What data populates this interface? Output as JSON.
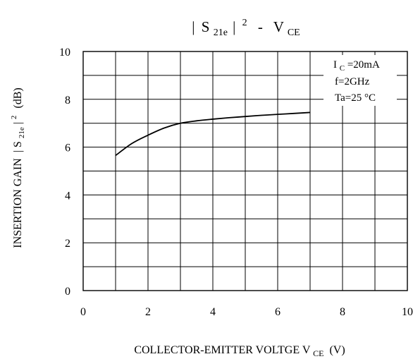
{
  "chart_data": {
    "type": "line",
    "title": {
      "bar_left": "|",
      "s": "S",
      "sub": "21e",
      "bar_right": "|",
      "sup": "2",
      "dash": "-",
      "v": "V",
      "v_sub": "CE"
    },
    "xlabel": {
      "main": "COLLECTOR-EMITTER VOLTGE V",
      "sub": "CE",
      "unit": "(V)"
    },
    "ylabel": {
      "main": "INSERTION GAIN",
      "bar_left": "|",
      "s": "S",
      "sub": "21e",
      "bar_right": "|",
      "sup": "2",
      "unit": "(dB)"
    },
    "xlim": [
      0,
      10
    ],
    "ylim": [
      0,
      10
    ],
    "x_ticks": [
      "0",
      "2",
      "4",
      "6",
      "8",
      "10"
    ],
    "y_ticks": [
      "0",
      "2",
      "4",
      "6",
      "8",
      "10"
    ],
    "x_grid_step": 1,
    "y_grid_step": 1,
    "grid": true,
    "legend_position": "top-right",
    "conditions": {
      "ic_i": "I",
      "ic_sub": "C",
      "ic_value": "=20mA",
      "freq": "f=2GHz",
      "ta": "Ta=25 °C"
    },
    "series": [
      {
        "x": [
          1.0,
          1.5,
          2.0,
          2.5,
          3.0,
          3.5,
          4.0,
          4.5,
          5.0,
          5.5,
          6.0,
          6.5,
          7.0
        ],
        "y": [
          5.65,
          6.15,
          6.5,
          6.8,
          7.0,
          7.1,
          7.17,
          7.23,
          7.28,
          7.33,
          7.37,
          7.41,
          7.45
        ]
      }
    ]
  }
}
